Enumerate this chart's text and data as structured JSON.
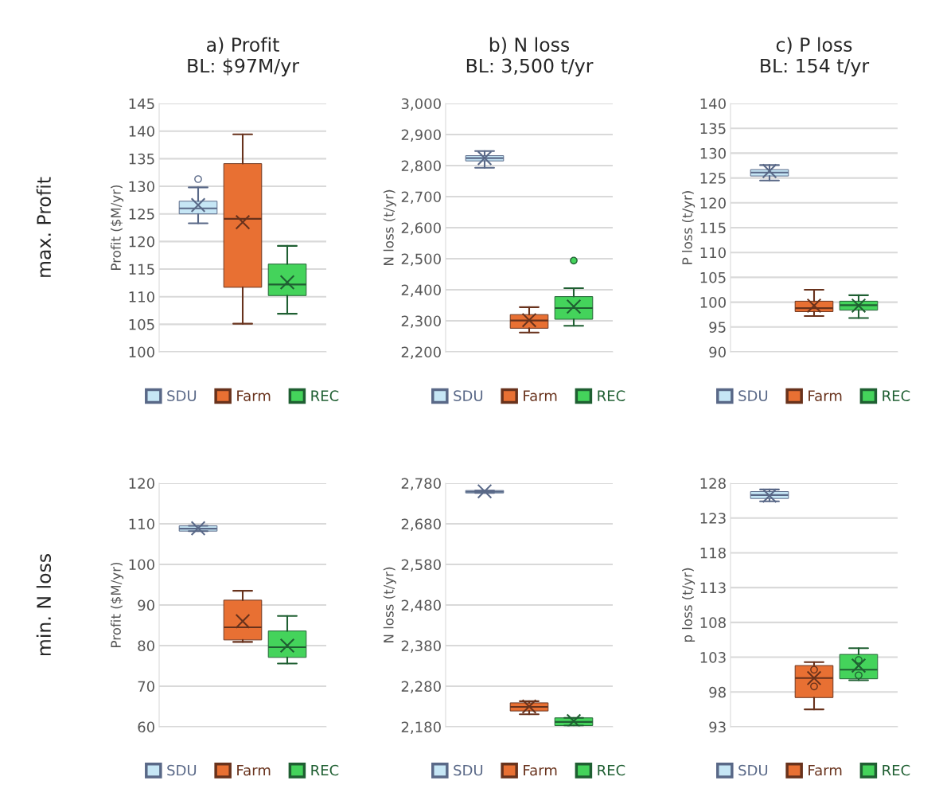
{
  "chart_data": [
    {
      "type": "box",
      "title": "a) Profit\nBL: $97M/yr",
      "ylabel": "Profit ($M/yr)",
      "annotations": [
        "max. Profit"
      ],
      "categories": [
        null
      ],
      "ylim": [
        100,
        145
      ],
      "yticks": [
        100,
        105,
        110,
        115,
        120,
        125,
        130,
        135,
        140,
        145
      ],
      "grid": "y",
      "legend": "bottom",
      "tick_labels": "y",
      "series": [
        {
          "name": "SDU",
          "color": "#c6e6f5",
          "boxes": [
            {
              "low": 123.3,
              "q1": 125.0,
              "median": 126.0,
              "q3": 127.3,
              "high": 129.8,
              "mean": 126.6,
              "outliers": [
                131.3
              ]
            }
          ]
        },
        {
          "name": "Farm",
          "color": "#e87033",
          "boxes": [
            {
              "low": 105.1,
              "q1": 111.7,
              "median": 124.1,
              "q3": 134.1,
              "high": 139.4,
              "mean": 123.5
            }
          ]
        },
        {
          "name": "REC",
          "color": "#44d35b",
          "boxes": [
            {
              "low": 106.9,
              "q1": 110.2,
              "median": 112.2,
              "q3": 115.9,
              "high": 119.2,
              "mean": 112.6
            }
          ]
        }
      ]
    },
    {
      "type": "box",
      "title": "b) N loss\nBL: 3,500 t/yr",
      "ylabel": "N loss (t/yr)",
      "categories": [
        null
      ],
      "ylim": [
        2200,
        3000
      ],
      "yticks": [
        {
          "value": 2200,
          "label": "2,200"
        },
        {
          "value": 2300,
          "label": "2,300"
        },
        {
          "value": 2400,
          "label": "2,400"
        },
        {
          "value": 2500,
          "label": "2,500"
        },
        {
          "value": 2600,
          "label": "2,600"
        },
        {
          "value": 2700,
          "label": "2,700"
        },
        {
          "value": 2800,
          "label": "2,800"
        },
        {
          "value": 2900,
          "label": "2,900"
        },
        {
          "value": 3000,
          "label": "3,000"
        }
      ],
      "grid": "y",
      "legend": "bottom",
      "tick_labels": "y",
      "series": [
        {
          "name": "SDU",
          "color": "#c6e6f5",
          "boxes": [
            {
              "low": 2793,
              "q1": 2815,
              "median": 2824,
              "q3": 2832,
              "high": 2847,
              "mean": 2824
            }
          ]
        },
        {
          "name": "Farm",
          "color": "#e87033",
          "boxes": [
            {
              "low": 2262,
              "q1": 2276,
              "median": 2301,
              "q3": 2320,
              "high": 2344,
              "mean": 2302
            }
          ]
        },
        {
          "name": "REC",
          "color": "#44d35b",
          "boxes": [
            {
              "low": 2284,
              "q1": 2305,
              "median": 2341,
              "q3": 2378,
              "high": 2405,
              "mean": 2346,
              "outliers": [
                2494
              ]
            }
          ]
        }
      ]
    },
    {
      "type": "box",
      "title": "c) P loss\nBL: 154 t/yr",
      "ylabel": "P loss (t/yr)",
      "categories": [
        null
      ],
      "ylim": [
        90,
        140
      ],
      "yticks": [
        90,
        95,
        100,
        105,
        110,
        115,
        120,
        125,
        130,
        135,
        140
      ],
      "grid": "y",
      "legend": "bottom",
      "tick_labels": "y",
      "series": [
        {
          "name": "SDU",
          "color": "#c6e6f5",
          "boxes": [
            {
              "low": 124.5,
              "q1": 125.4,
              "median": 126.1,
              "q3": 126.7,
              "high": 127.6,
              "mean": 126.4
            }
          ]
        },
        {
          "name": "Farm",
          "color": "#e87033",
          "boxes": [
            {
              "low": 97.2,
              "q1": 98.1,
              "median": 98.8,
              "q3": 100.2,
              "high": 102.5,
              "mean": 99.3
            }
          ]
        },
        {
          "name": "REC",
          "color": "#44d35b",
          "boxes": [
            {
              "low": 96.8,
              "q1": 98.4,
              "median": 99.4,
              "q3": 100.2,
              "high": 101.4,
              "mean": 99.3
            }
          ]
        }
      ]
    },
    {
      "type": "box",
      "ylabel": "Profit ($M/yr)",
      "annotations": [
        "min. N loss"
      ],
      "categories": [
        null
      ],
      "ylim": [
        60,
        120
      ],
      "yticks": [
        60,
        70,
        80,
        90,
        100,
        110,
        120
      ],
      "grid": "y",
      "legend": "bottom",
      "tick_labels": "y",
      "series": [
        {
          "name": "SDU",
          "color": "#c6e6f5",
          "boxes": [
            {
              "low": 108.2,
              "q1": 108.2,
              "median": 108.8,
              "q3": 109.5,
              "high": 109.5,
              "mean": 108.9
            }
          ]
        },
        {
          "name": "Farm",
          "color": "#e87033",
          "boxes": [
            {
              "low": 80.9,
              "q1": 81.4,
              "median": 84.5,
              "q3": 91.2,
              "high": 93.5,
              "mean": 86.0
            }
          ]
        },
        {
          "name": "REC",
          "color": "#44d35b",
          "boxes": [
            {
              "low": 75.6,
              "q1": 77.1,
              "median": 79.6,
              "q3": 83.6,
              "high": 87.3,
              "mean": 80.0
            }
          ]
        }
      ]
    },
    {
      "type": "box",
      "ylabel": "N loss (t/yr)",
      "categories": [
        null
      ],
      "ylim": [
        2180,
        2780
      ],
      "yticks": [
        {
          "value": 2180,
          "label": "2,180"
        },
        {
          "value": 2280,
          "label": "2,280"
        },
        {
          "value": 2380,
          "label": "2,380"
        },
        {
          "value": 2480,
          "label": "2,480"
        },
        {
          "value": 2580,
          "label": "2,580"
        },
        {
          "value": 2680,
          "label": "2,680"
        },
        {
          "value": 2780,
          "label": "2,780"
        }
      ],
      "grid": "y",
      "legend": "bottom",
      "tick_labels": "y",
      "series": [
        {
          "name": "SDU",
          "color": "#c6e6f5",
          "boxes": [
            {
              "low": 2756,
              "q1": 2756,
              "median": 2759,
              "q3": 2762,
              "high": 2762,
              "mean": 2760
            }
          ]
        },
        {
          "name": "Farm",
          "color": "#e87033",
          "boxes": [
            {
              "low": 2211,
              "q1": 2219,
              "median": 2229,
              "q3": 2239,
              "high": 2243,
              "mean": 2230
            }
          ]
        },
        {
          "name": "REC",
          "color": "#44d35b",
          "boxes": [
            {
              "low": 2183,
              "q1": 2183,
              "median": 2192,
              "q3": 2202,
              "high": 2202,
              "mean": 2194
            }
          ]
        }
      ]
    },
    {
      "type": "box",
      "ylabel": "p loss (t/yr)",
      "categories": [
        null
      ],
      "ylim": [
        93,
        128
      ],
      "yticks": [
        93,
        98,
        103,
        108,
        113,
        118,
        123,
        128
      ],
      "grid": "y",
      "legend": "bottom",
      "tick_labels": "y",
      "series": [
        {
          "name": "SDU",
          "color": "#c6e6f5",
          "boxes": [
            {
              "low": 125.4,
              "q1": 125.8,
              "median": 126.3,
              "q3": 126.8,
              "high": 127.1,
              "mean": 126.2
            }
          ]
        },
        {
          "name": "Farm",
          "color": "#e87033",
          "boxes": [
            {
              "low": 95.5,
              "q1": 97.2,
              "median": 100.0,
              "q3": 101.8,
              "high": 102.3,
              "mean": 100.0,
              "outliers": [
                101.2,
                98.8
              ]
            }
          ]
        },
        {
          "name": "REC",
          "color": "#44d35b",
          "boxes": [
            {
              "low": 99.7,
              "q1": 99.9,
              "median": 101.2,
              "q3": 103.4,
              "high": 104.3,
              "mean": 101.8,
              "outliers": [
                102.6,
                100.4
              ]
            }
          ]
        }
      ]
    }
  ]
}
